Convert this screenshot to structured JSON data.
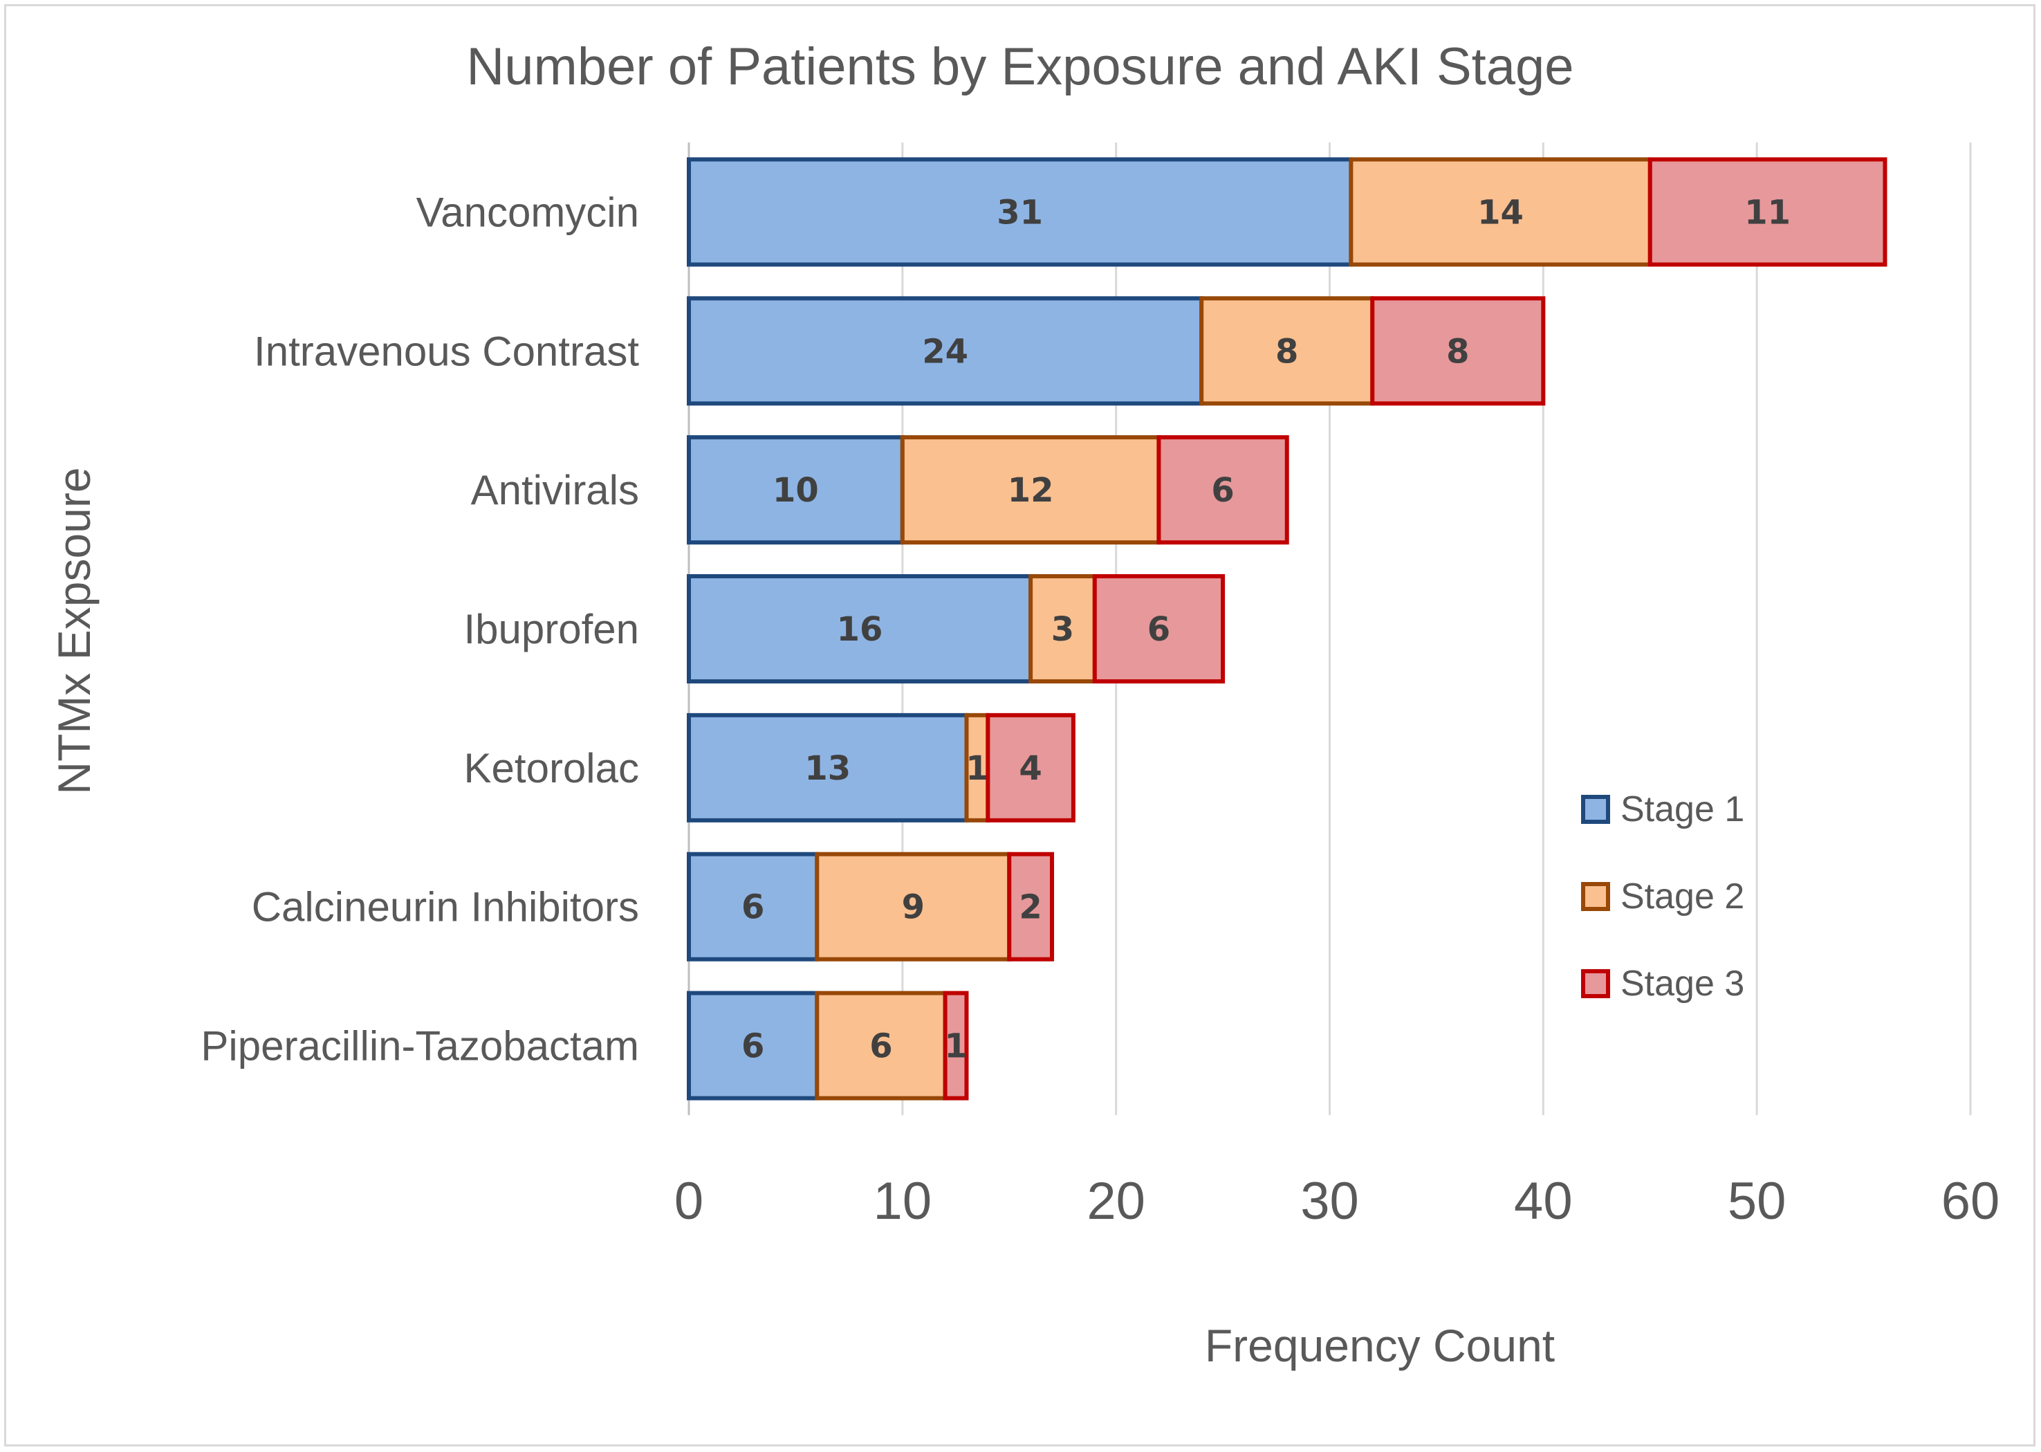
{
  "chart_data": {
    "type": "bar",
    "orientation": "horizontal",
    "stacked": true,
    "title": "Number of Patients by Exposure and AKI Stage",
    "xlabel": "Frequency Count",
    "ylabel": "NTMx Expsoure",
    "xlim": [
      0,
      60
    ],
    "xticks": [
      0,
      10,
      20,
      30,
      40,
      50,
      60
    ],
    "grid": "vertical",
    "legend": "right",
    "categories": [
      "Vancomycin",
      "Intravenous Contrast",
      "Antivirals",
      "Ibuprofen",
      "Ketorolac",
      "Calcineurin Inhibitors",
      "Piperacillin-Tazobactam"
    ],
    "series": [
      {
        "name": "Stage 1",
        "values": [
          31,
          24,
          10,
          16,
          13,
          6,
          6
        ],
        "fill": "#8eb4e3",
        "stroke": "#1f497d"
      },
      {
        "name": "Stage 2",
        "values": [
          14,
          8,
          12,
          3,
          1,
          9,
          6
        ],
        "fill": "#fac090",
        "stroke": "#984807"
      },
      {
        "name": "Stage 3",
        "values": [
          11,
          8,
          6,
          6,
          4,
          2,
          1
        ],
        "fill": "#e6989a",
        "stroke": "#c00000"
      }
    ],
    "grid_color": "#d9d9d9",
    "axis_color": "#bfbfbf"
  }
}
